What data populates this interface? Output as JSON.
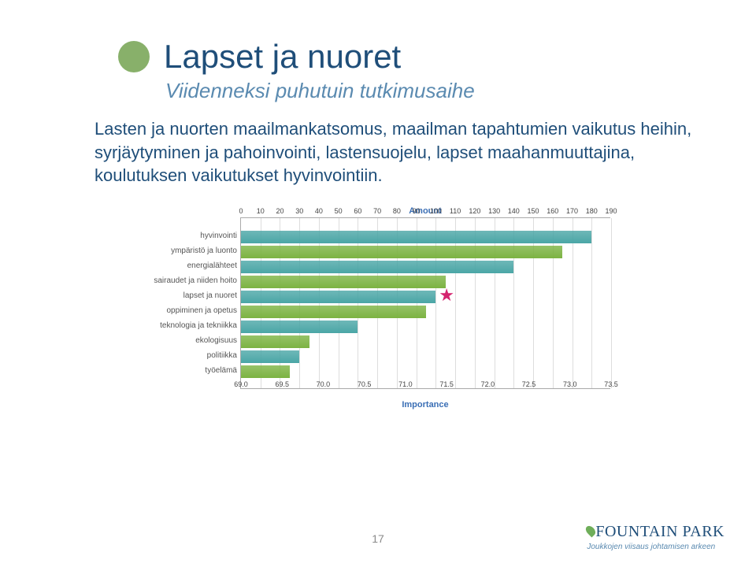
{
  "title": "Lapset ja nuoret",
  "subtitle": "Viidenneksi puhutuin tutkimusaihe",
  "body": "Lasten ja nuorten maailmankatsomus, maailman tapahtumien vaikutus heihin, syrjäytyminen ja pahoinvointi, lastensuojelu, lapset maahanmuuttajina, koulutuksen vaikutukset hyvinvointiin.",
  "page_number": "17",
  "bullet_color": "#88b06a",
  "title_color": "#1f4e79",
  "subtitle_color": "#5a8ab0",
  "chart": {
    "type": "bar",
    "top_axis": {
      "label": "Amount",
      "min": 0,
      "max": 190,
      "step": 10,
      "ticks": [
        "0",
        "10",
        "20",
        "30",
        "40",
        "50",
        "60",
        "70",
        "80",
        "90",
        "100",
        "110",
        "120",
        "130",
        "140",
        "150",
        "160",
        "170",
        "180",
        "190"
      ]
    },
    "bottom_axis": {
      "label": "Importance",
      "min": 69.0,
      "max": 73.5,
      "step": 0.5,
      "ticks": [
        "69.0",
        "69.5",
        "70.0",
        "70.5",
        "71.0",
        "71.5",
        "72.0",
        "72.5",
        "73.0",
        "73.5"
      ]
    },
    "bar_colors": {
      "teal": "#4aa6a6",
      "green": "#7cb342"
    },
    "categories": [
      {
        "label": "hyvinvointi",
        "value": 180
      },
      {
        "label": "ympäristö ja luonto",
        "value": 165
      },
      {
        "label": "energialähteet",
        "value": 140
      },
      {
        "label": "sairaudet ja niiden hoito",
        "value": 105
      },
      {
        "label": "lapset ja nuoret",
        "value": 100,
        "marker": true,
        "marker_importance": 71.5,
        "marker_color": "#d4236e"
      },
      {
        "label": "oppiminen ja opetus",
        "value": 95
      },
      {
        "label": "teknologia ja tekniikka",
        "value": 60
      },
      {
        "label": "ekologisuus",
        "value": 35
      },
      {
        "label": "politiikka",
        "value": 30
      },
      {
        "label": "työelämä",
        "value": 25
      }
    ]
  },
  "footer": {
    "brand_top": "FOUNTAIN PARK",
    "brand_drop_color": "#6fae5a",
    "tagline": "Joukkojen viisaus johtamisen arkeen"
  }
}
